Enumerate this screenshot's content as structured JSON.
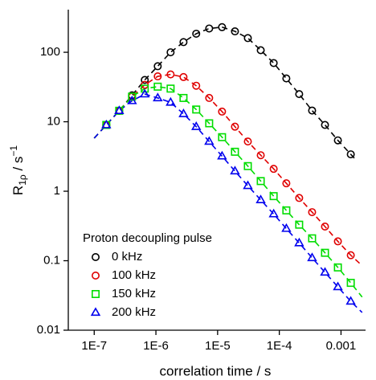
{
  "chart_data": {
    "type": "scatter",
    "x_label": "correlation time / s",
    "y_label": {
      "main": "R",
      "sub": "1ρ",
      "mid": " / s",
      "sup": "−1"
    },
    "log_x": true,
    "log_y": true,
    "xlim": [
      3.8e-08,
      0.0025
    ],
    "ylim": [
      0.01,
      400
    ],
    "xticks": [
      {
        "value": 1e-07,
        "label": "1E-7"
      },
      {
        "value": 1e-06,
        "label": "1E-6"
      },
      {
        "value": 1e-05,
        "label": "1E-5"
      },
      {
        "value": 0.0001,
        "label": "1E-4"
      },
      {
        "value": 0.001,
        "label": "0.001"
      }
    ],
    "yticks": [
      0.01,
      0.1,
      1,
      10,
      100
    ],
    "legend_title": "Proton decoupling pulse",
    "legend_position": "lower-left",
    "x": [
      1.57e-07,
      2.54e-07,
      4.1e-07,
      6.6e-07,
      1.07e-06,
      1.73e-06,
      2.8e-06,
      4.5e-06,
      7.3e-06,
      1.18e-05,
      1.91e-05,
      3.09e-05,
      5e-05,
      8.1e-05,
      0.00013,
      0.00021,
      0.00034,
      0.00055,
      0.00089,
      0.00144
    ],
    "series": [
      {
        "name": "0 kHz",
        "color": "#000000",
        "marker": "circle",
        "values": [
          9,
          14.4,
          24,
          40,
          63,
          100,
          140,
          185,
          220,
          230,
          200,
          160,
          107,
          70,
          42,
          25,
          14.5,
          9,
          5.4,
          3.4
        ],
        "fit_start": [
          1e-07,
          5.8
        ],
        "fit_end": [
          0.0017,
          2.9
        ]
      },
      {
        "name": "100 kHz",
        "color": "#e00000",
        "marker": "circle",
        "values": [
          9,
          14.4,
          23,
          34,
          45,
          48,
          44,
          33,
          22,
          14,
          8.5,
          5.2,
          3.3,
          2.1,
          1.3,
          0.8,
          0.5,
          0.31,
          0.19,
          0.12
        ],
        "fit_start": [
          1e-07,
          5.8
        ],
        "fit_end": [
          0.0022,
          0.085
        ]
      },
      {
        "name": "150 kHz",
        "color": "#00dd00",
        "marker": "square",
        "values": [
          9,
          14.4,
          23,
          30,
          32,
          30,
          22,
          15,
          9.5,
          6,
          3.7,
          2.3,
          1.4,
          0.85,
          0.53,
          0.33,
          0.21,
          0.13,
          0.08,
          0.048
        ],
        "fit_start": [
          1e-07,
          5.8
        ],
        "fit_end": [
          0.0022,
          0.03
        ]
      },
      {
        "name": "200 kHz",
        "color": "#0000ee",
        "marker": "triangle",
        "values": [
          9,
          14.4,
          20,
          25,
          22,
          19,
          13,
          8.5,
          5.2,
          3.2,
          1.95,
          1.2,
          0.75,
          0.47,
          0.29,
          0.18,
          0.11,
          0.068,
          0.042,
          0.026
        ],
        "fit_start": [
          1e-07,
          5.8
        ],
        "fit_end": [
          0.0022,
          0.018
        ]
      }
    ]
  }
}
